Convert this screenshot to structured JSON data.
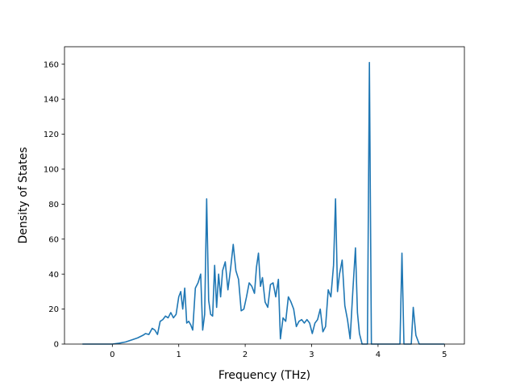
{
  "chart_data": {
    "type": "line",
    "title": "",
    "xlabel": "Frequency (THz)",
    "ylabel": "Density of States",
    "xlim": [
      -0.72,
      5.3
    ],
    "ylim": [
      0,
      170
    ],
    "xticks": [
      0,
      1,
      2,
      3,
      4,
      5
    ],
    "yticks": [
      0,
      20,
      40,
      60,
      80,
      100,
      120,
      140,
      160
    ],
    "grid": false,
    "legend": "none",
    "series": [
      {
        "color": "#1f77b4",
        "x": [
          -0.45,
          -0.3,
          -0.15,
          0.0,
          0.1,
          0.2,
          0.3,
          0.38,
          0.46,
          0.5,
          0.55,
          0.6,
          0.64,
          0.68,
          0.72,
          0.76,
          0.8,
          0.84,
          0.88,
          0.92,
          0.96,
          1.0,
          1.03,
          1.06,
          1.09,
          1.12,
          1.15,
          1.18,
          1.21,
          1.25,
          1.29,
          1.33,
          1.36,
          1.39,
          1.42,
          1.45,
          1.48,
          1.51,
          1.54,
          1.57,
          1.6,
          1.63,
          1.66,
          1.7,
          1.74,
          1.78,
          1.82,
          1.86,
          1.9,
          1.94,
          1.98,
          2.02,
          2.06,
          2.1,
          2.14,
          2.17,
          2.2,
          2.23,
          2.26,
          2.3,
          2.34,
          2.38,
          2.42,
          2.46,
          2.5,
          2.53,
          2.57,
          2.61,
          2.65,
          2.69,
          2.73,
          2.77,
          2.81,
          2.85,
          2.89,
          2.93,
          2.97,
          3.01,
          3.05,
          3.09,
          3.13,
          3.17,
          3.21,
          3.25,
          3.29,
          3.33,
          3.36,
          3.39,
          3.42,
          3.46,
          3.5,
          3.54,
          3.58,
          3.62,
          3.66,
          3.69,
          3.72,
          3.76,
          3.8,
          3.84,
          3.87,
          3.9,
          3.94,
          4.0,
          4.1,
          4.2,
          4.3,
          4.33,
          4.36,
          4.39,
          4.45,
          4.5,
          4.53,
          4.57,
          4.62,
          4.7,
          4.8,
          5.0
        ],
        "y": [
          0,
          0,
          0,
          0,
          0.5,
          1.2,
          2.5,
          3.5,
          5,
          6,
          5.5,
          9,
          8,
          5.5,
          13,
          14,
          16,
          15,
          18,
          15,
          17,
          27,
          30,
          20,
          32,
          12,
          13,
          11,
          8,
          32,
          35,
          40,
          8,
          17,
          83,
          25,
          17,
          16,
          45,
          21,
          40,
          27,
          42,
          47,
          31,
          43,
          57,
          42,
          37,
          19,
          20,
          27,
          35,
          33,
          29,
          44,
          52,
          33,
          38,
          24,
          21,
          34,
          35,
          27,
          37,
          3,
          15,
          13,
          27,
          24,
          20,
          10,
          13,
          14,
          12,
          14,
          12,
          6,
          12,
          14,
          20,
          7,
          10,
          31,
          27,
          45,
          83,
          30,
          40,
          48,
          22,
          14,
          3,
          30,
          55,
          18,
          6,
          0,
          0,
          0,
          161,
          0,
          0,
          0,
          0,
          0,
          0,
          0,
          52,
          0,
          0,
          0,
          21,
          5,
          0,
          0,
          0,
          0
        ]
      }
    ]
  }
}
